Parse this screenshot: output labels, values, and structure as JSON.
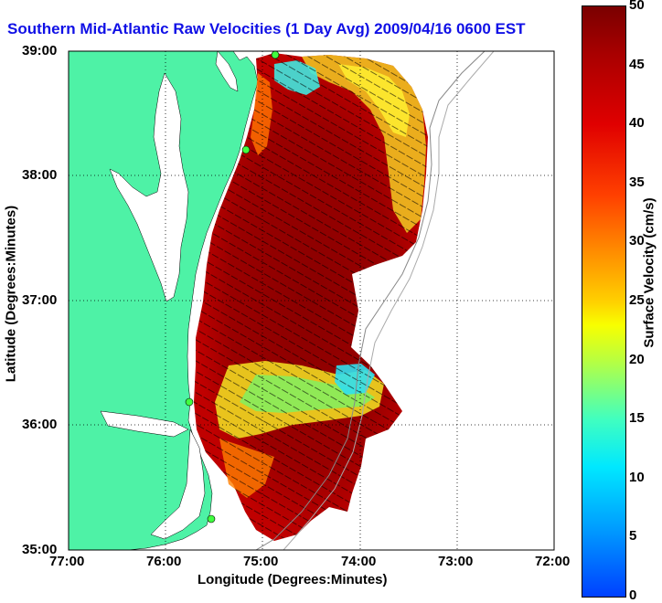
{
  "title": "Southern Mid-Atlantic Raw Velocities (1 Day Avg) 2009/04/16 0600 EST",
  "axes": {
    "xlabel": "Longitude (Degrees:Minutes)",
    "ylabel": "Latitude (Degrees:Minutes)",
    "xticks": [
      "77:00",
      "76:00",
      "75:00",
      "74:00",
      "73:00",
      "72:00"
    ],
    "yticks": [
      "39:00",
      "38:00",
      "37:00",
      "36:00",
      "35:00"
    ]
  },
  "colorbar": {
    "label": "Surface Velocity (cm/s)",
    "ticks": [
      "50",
      "45",
      "40",
      "35",
      "30",
      "25",
      "20",
      "15",
      "10",
      "5",
      "0"
    ],
    "min": 0,
    "max": 50
  },
  "colors": {
    "land": "#4ef2a6",
    "title": "#1010e6",
    "grid": "#000000",
    "vector": "#000000"
  },
  "map": {
    "lon_range": [
      -77,
      -72
    ],
    "lat_range": [
      35,
      39
    ],
    "grid": true
  }
}
